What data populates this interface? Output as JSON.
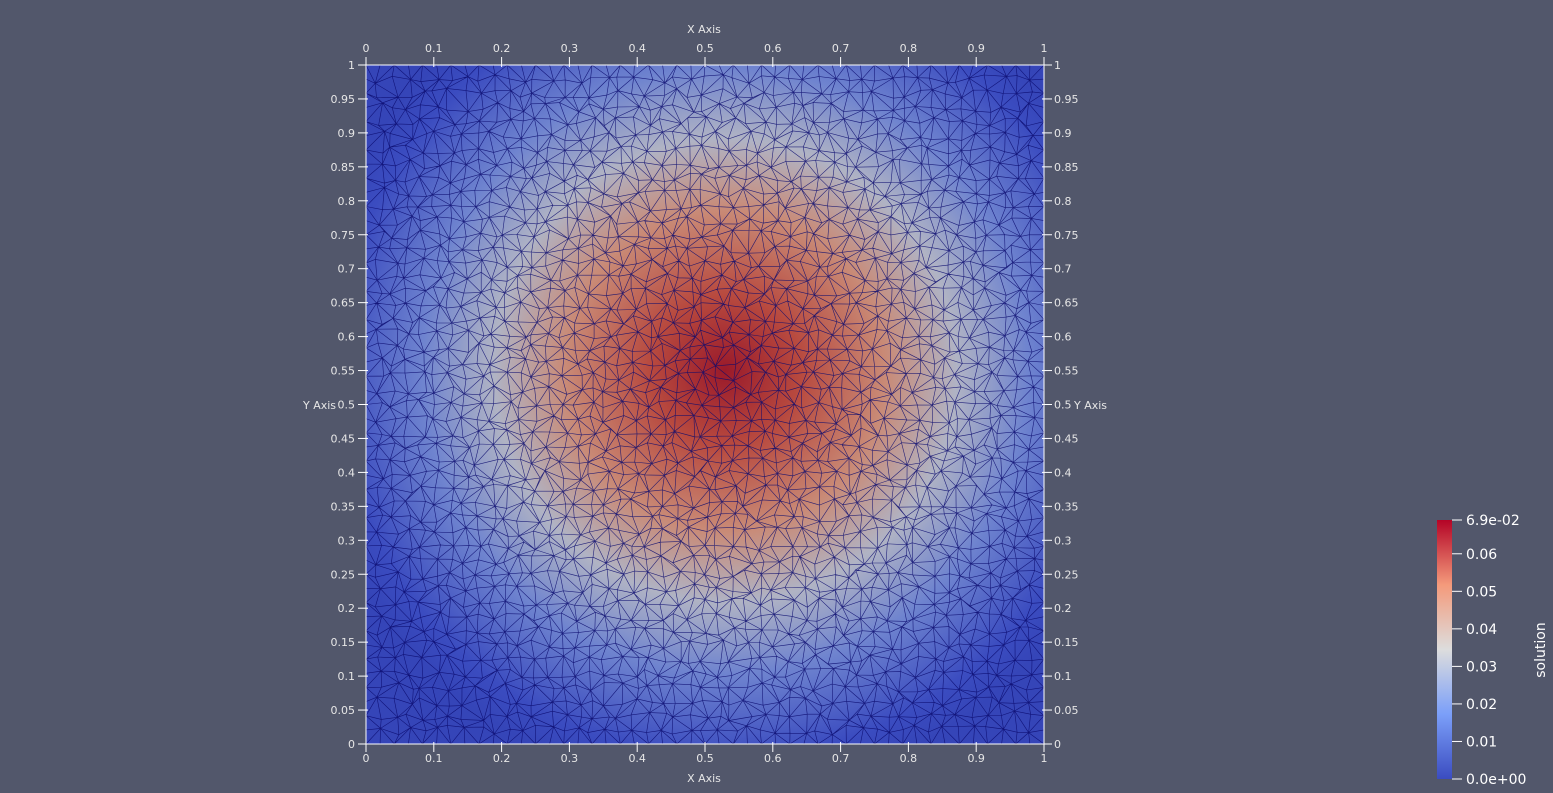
{
  "axes": {
    "x_title_top": "X Axis",
    "x_title_bottom": "X Axis",
    "y_title_left": "Y Axis",
    "y_title_right": "Y Axis",
    "x_ticks": [
      "0",
      "0.1",
      "0.2",
      "0.3",
      "0.4",
      "0.5",
      "0.6",
      "0.7",
      "0.8",
      "0.9",
      "1"
    ],
    "y_ticks": [
      "0",
      "0.05",
      "0.1",
      "0.15",
      "0.2",
      "0.25",
      "0.3",
      "0.35",
      "0.4",
      "0.45",
      "0.5",
      "0.55",
      "0.6",
      "0.65",
      "0.7",
      "0.75",
      "0.8",
      "0.85",
      "0.9",
      "0.95",
      "1"
    ]
  },
  "colorbar": {
    "title": "solution",
    "labels": [
      "6.9e-02",
      "0.06",
      "0.05",
      "0.04",
      "0.03",
      "0.02",
      "0.01",
      "0.0e+00"
    ],
    "min": 0.0,
    "max": 0.069,
    "colors": {
      "low": "#3b4cc0",
      "mid": "#dddddd",
      "high": "#b40426"
    }
  },
  "colors": {
    "background": "#52576b",
    "mesh_edge": "#0a0a6e"
  }
}
